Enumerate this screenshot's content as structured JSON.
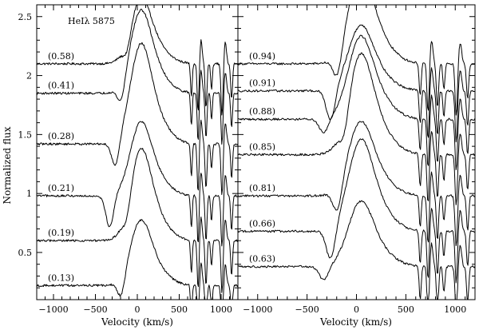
{
  "chart_data": {
    "type": "line",
    "ylabel": "Normalized flux",
    "ylim": [
      0.1,
      2.6
    ],
    "yticks": [
      0.5,
      1,
      1.5,
      2,
      2.5
    ],
    "ytick_labels": [
      "0.5",
      "1",
      "1.5",
      "2",
      "2.5"
    ],
    "panels": [
      {
        "title": "HeIλ 5875",
        "xlabel": "Velocity (km/s)",
        "xlim": [
          -1200,
          1200
        ],
        "xticks": [
          -1000,
          -500,
          0,
          500,
          1000
        ],
        "xtick_labels": [
          "−1000",
          "−500",
          "0",
          "500",
          "1000"
        ],
        "series": [
          {
            "name": "(0.58)",
            "offset": 2.1
          },
          {
            "name": "(0.41)",
            "offset": 1.85
          },
          {
            "name": "(0.28)",
            "offset": 1.42
          },
          {
            "name": "(0.21)",
            "offset": 0.98
          },
          {
            "name": "(0.19)",
            "offset": 0.6
          },
          {
            "name": "(0.13)",
            "offset": 0.22
          }
        ]
      },
      {
        "title": "",
        "xlabel": "Velocity (km/s)",
        "xlim": [
          -1200,
          1200
        ],
        "xticks": [
          -1000,
          -500,
          0,
          500,
          1000
        ],
        "xtick_labels": [
          "−1000",
          "−500",
          "0",
          "500",
          "1000"
        ],
        "series": [
          {
            "name": "(0.94)",
            "offset": 2.1
          },
          {
            "name": "(0.91)",
            "offset": 1.87
          },
          {
            "name": "(0.88)",
            "offset": 1.63
          },
          {
            "name": "(0.85)",
            "offset": 1.33
          },
          {
            "name": "(0.81)",
            "offset": 0.98
          },
          {
            "name": "(0.66)",
            "offset": 0.68
          },
          {
            "name": "(0.63)",
            "offset": 0.38
          }
        ]
      }
    ]
  }
}
